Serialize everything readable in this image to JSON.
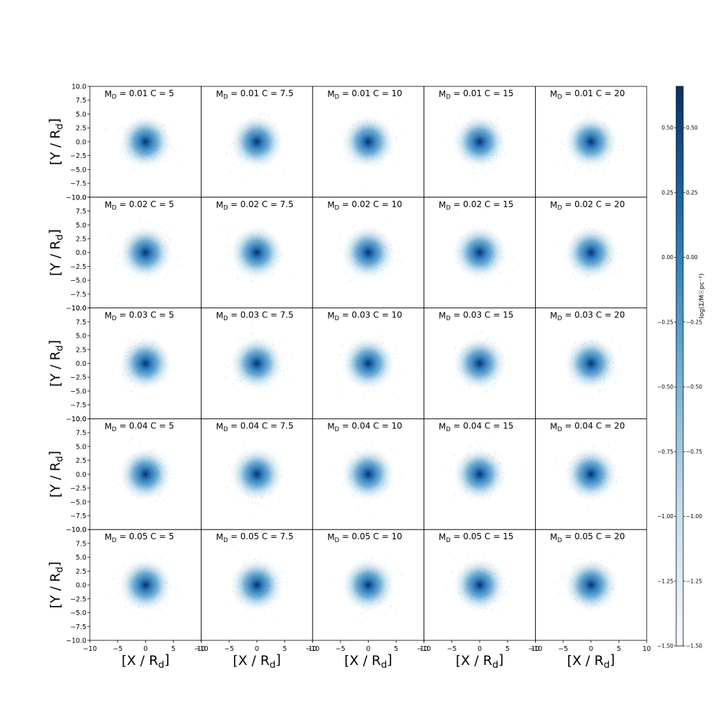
{
  "chart_data": {
    "type": "heatmap",
    "description_rows": "Grid of 2D density histograms; rows vary M_D, columns vary C",
    "md_values": [
      "0.01",
      "0.02",
      "0.03",
      "0.04",
      "0.05"
    ],
    "c_values": [
      "5",
      "7.5",
      "10",
      "15",
      "20"
    ],
    "panel_title_parts": {
      "prefix": "M",
      "subscript": "D",
      "middle": " = ",
      "c_part": " C = "
    },
    "xlabel": {
      "main": "[X / R",
      "sub": "d",
      "close": "]"
    },
    "ylabel": {
      "main": "[Y / R",
      "sub": "d",
      "close": "]"
    },
    "xlim": [
      -10,
      10
    ],
    "ylim": [
      -10,
      10
    ],
    "xticks": [
      -10,
      -5,
      0,
      5,
      10
    ],
    "xtick_labels": [
      "−10",
      "−5",
      "0",
      "5",
      "10"
    ],
    "yticks": [
      -10,
      -7.5,
      -5,
      -2.5,
      0,
      2.5,
      5,
      7.5,
      10
    ],
    "ytick_labels": [
      "−10.0",
      "−7.5",
      "−5.0",
      "−2.5",
      "0.0",
      "2.5",
      "5.0",
      "7.5",
      "10.0"
    ],
    "distribution": "centered radially symmetric blob at (0,0), scale ~2 R_d",
    "colorbar": {
      "label": "log(Σ/M☉pc⁻²)",
      "range": [
        -1.5,
        0.66
      ],
      "ticks": [
        0.5,
        0.25,
        0.0,
        -0.25,
        -0.5,
        -0.75,
        -1.0,
        -1.25,
        -1.5
      ],
      "tick_labels": [
        "0.50",
        "0.25",
        "0.00",
        "−0.25",
        "−0.50",
        "−0.75",
        "−1.00",
        "−1.25",
        "−1.50"
      ],
      "colormap": "Blues",
      "color_low": "#f7fbff",
      "color_high": "#08306b"
    },
    "grid": false
  }
}
